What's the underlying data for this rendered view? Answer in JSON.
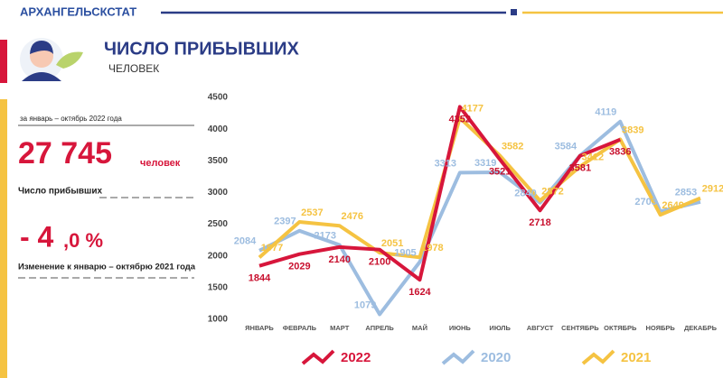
{
  "header": {
    "org": "АРХАНГЕЛЬСКСТАТ"
  },
  "summary": {
    "period": "за январь – октябрь 2022 года",
    "total": "27 745",
    "total_unit": "человек",
    "total_caption": "Число прибывших",
    "change_main": "- 4",
    "change_rest": ",0 %",
    "change_caption": "Изменение к январю – октябрю 2021 года"
  },
  "chart_data": {
    "type": "line",
    "title": "ЧИСЛО ПРИБЫВШИХ",
    "subtitle": "ЧЕЛОВЕК",
    "categories": [
      "ЯНВАРЬ",
      "ФЕВРАЛЬ",
      "МАРТ",
      "АПРЕЛЬ",
      "МАЙ",
      "ИЮНЬ",
      "ИЮЛЬ",
      "АВГУСТ",
      "СЕНТЯБРЬ",
      "ОКТЯБРЬ",
      "НОЯБРЬ",
      "ДЕКАБРЬ"
    ],
    "series": [
      {
        "name": "2020",
        "color": "#9dbde0",
        "values": [
          2084,
          2397,
          2173,
          1079,
          1905,
          3313,
          3319,
          2840,
          3584,
          4119,
          2703,
          2853
        ]
      },
      {
        "name": "2021",
        "color": "#f5c342",
        "values": [
          1977,
          2537,
          2476,
          2051,
          1978,
          4177,
          3582,
          2872,
          3412,
          3839,
          2649,
          2912
        ]
      },
      {
        "name": "2022",
        "color": "#d7163b",
        "values": [
          1844,
          2029,
          2140,
          2100,
          1624,
          4352,
          3521,
          2718,
          3581,
          3836,
          null,
          null
        ]
      }
    ],
    "ylim": [
      1000,
      4500
    ],
    "yticks": [
      1000,
      1500,
      2000,
      2500,
      3000,
      3500,
      4000,
      4500
    ],
    "grid": false
  }
}
